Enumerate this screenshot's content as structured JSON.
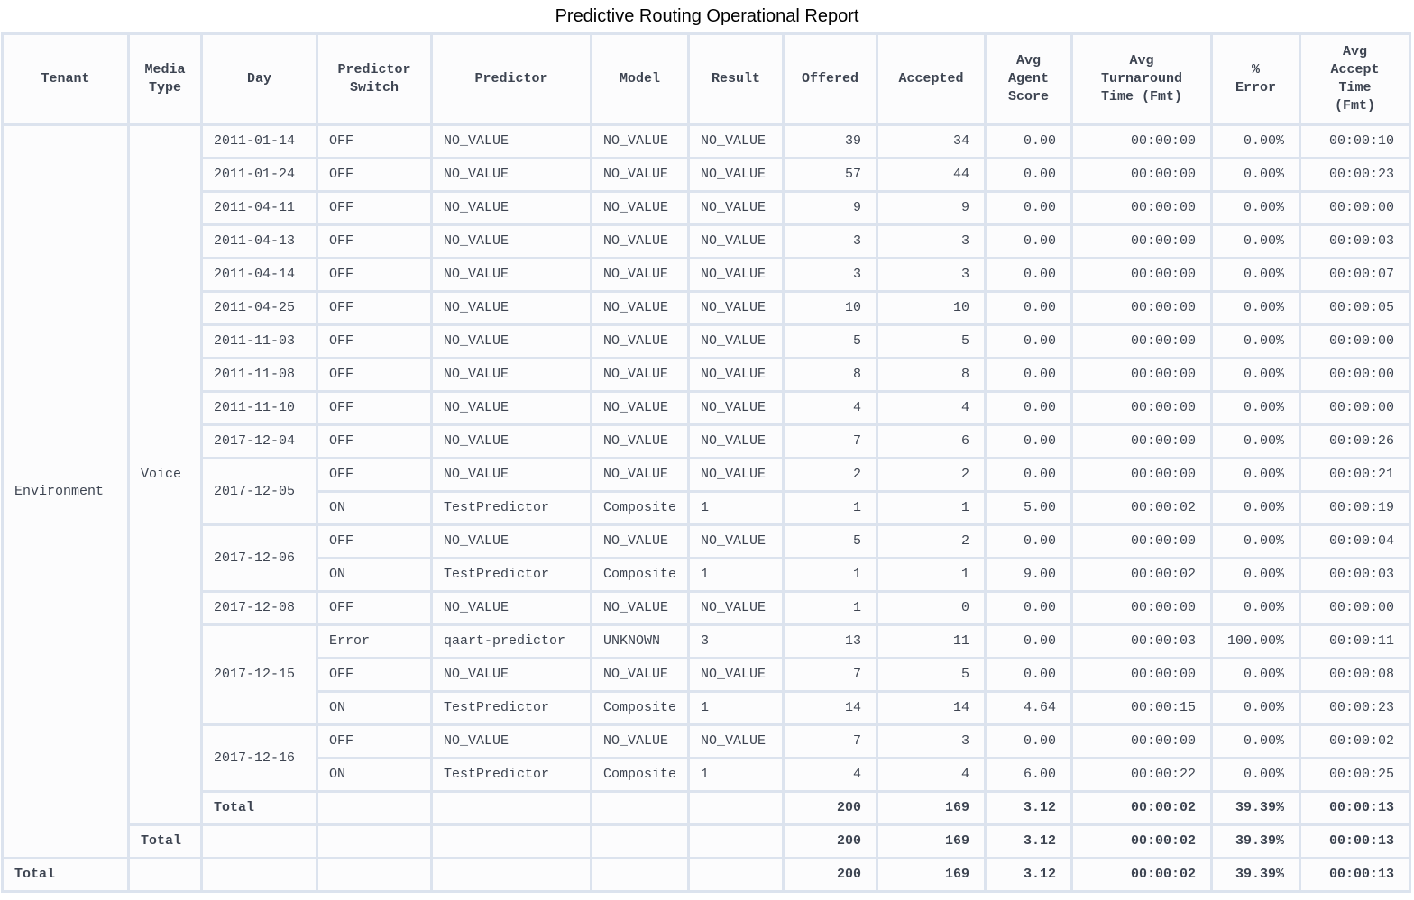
{
  "title": "Predictive Routing Operational Report",
  "table": {
    "columns": [
      {
        "id": "tenant",
        "label": "Tenant"
      },
      {
        "id": "media_type",
        "label": "Media\nType"
      },
      {
        "id": "day",
        "label": "Day"
      },
      {
        "id": "predictor_switch",
        "label": "Predictor\nSwitch"
      },
      {
        "id": "predictor",
        "label": "Predictor"
      },
      {
        "id": "model",
        "label": "Model"
      },
      {
        "id": "result",
        "label": "Result"
      },
      {
        "id": "offered",
        "label": "Offered"
      },
      {
        "id": "accepted",
        "label": "Accepted"
      },
      {
        "id": "avg_agent_score",
        "label": "Avg\nAgent\nScore"
      },
      {
        "id": "avg_turnaround_time",
        "label": "Avg\nTurnaround\nTime (Fmt)"
      },
      {
        "id": "pct_error",
        "label": "%\nError"
      },
      {
        "id": "avg_accept_time",
        "label": "Avg\nAccept\nTime\n(Fmt)"
      }
    ],
    "tenant": {
      "name": "Environment",
      "rowspan": 22
    },
    "media_type": {
      "name": "Voice",
      "rowspan": 21
    },
    "total_label": "Total",
    "rows": [
      {
        "day": "2011-01-14",
        "day_rowspan": 1,
        "predictor_switch": "OFF",
        "predictor": "NO_VALUE",
        "model": "NO_VALUE",
        "result": "NO_VALUE",
        "offered": "39",
        "accepted": "34",
        "avg_agent_score": "0.00",
        "avg_turnaround_time": "00:00:00",
        "pct_error": "0.00%",
        "avg_accept_time": "00:00:10"
      },
      {
        "day": "2011-01-24",
        "day_rowspan": 1,
        "predictor_switch": "OFF",
        "predictor": "NO_VALUE",
        "model": "NO_VALUE",
        "result": "NO_VALUE",
        "offered": "57",
        "accepted": "44",
        "avg_agent_score": "0.00",
        "avg_turnaround_time": "00:00:00",
        "pct_error": "0.00%",
        "avg_accept_time": "00:00:23"
      },
      {
        "day": "2011-04-11",
        "day_rowspan": 1,
        "predictor_switch": "OFF",
        "predictor": "NO_VALUE",
        "model": "NO_VALUE",
        "result": "NO_VALUE",
        "offered": "9",
        "accepted": "9",
        "avg_agent_score": "0.00",
        "avg_turnaround_time": "00:00:00",
        "pct_error": "0.00%",
        "avg_accept_time": "00:00:00"
      },
      {
        "day": "2011-04-13",
        "day_rowspan": 1,
        "predictor_switch": "OFF",
        "predictor": "NO_VALUE",
        "model": "NO_VALUE",
        "result": "NO_VALUE",
        "offered": "3",
        "accepted": "3",
        "avg_agent_score": "0.00",
        "avg_turnaround_time": "00:00:00",
        "pct_error": "0.00%",
        "avg_accept_time": "00:00:03"
      },
      {
        "day": "2011-04-14",
        "day_rowspan": 1,
        "predictor_switch": "OFF",
        "predictor": "NO_VALUE",
        "model": "NO_VALUE",
        "result": "NO_VALUE",
        "offered": "3",
        "accepted": "3",
        "avg_agent_score": "0.00",
        "avg_turnaround_time": "00:00:00",
        "pct_error": "0.00%",
        "avg_accept_time": "00:00:07"
      },
      {
        "day": "2011-04-25",
        "day_rowspan": 1,
        "predictor_switch": "OFF",
        "predictor": "NO_VALUE",
        "model": "NO_VALUE",
        "result": "NO_VALUE",
        "offered": "10",
        "accepted": "10",
        "avg_agent_score": "0.00",
        "avg_turnaround_time": "00:00:00",
        "pct_error": "0.00%",
        "avg_accept_time": "00:00:05"
      },
      {
        "day": "2011-11-03",
        "day_rowspan": 1,
        "predictor_switch": "OFF",
        "predictor": "NO_VALUE",
        "model": "NO_VALUE",
        "result": "NO_VALUE",
        "offered": "5",
        "accepted": "5",
        "avg_agent_score": "0.00",
        "avg_turnaround_time": "00:00:00",
        "pct_error": "0.00%",
        "avg_accept_time": "00:00:00"
      },
      {
        "day": "2011-11-08",
        "day_rowspan": 1,
        "predictor_switch": "OFF",
        "predictor": "NO_VALUE",
        "model": "NO_VALUE",
        "result": "NO_VALUE",
        "offered": "8",
        "accepted": "8",
        "avg_agent_score": "0.00",
        "avg_turnaround_time": "00:00:00",
        "pct_error": "0.00%",
        "avg_accept_time": "00:00:00"
      },
      {
        "day": "2011-11-10",
        "day_rowspan": 1,
        "predictor_switch": "OFF",
        "predictor": "NO_VALUE",
        "model": "NO_VALUE",
        "result": "NO_VALUE",
        "offered": "4",
        "accepted": "4",
        "avg_agent_score": "0.00",
        "avg_turnaround_time": "00:00:00",
        "pct_error": "0.00%",
        "avg_accept_time": "00:00:00"
      },
      {
        "day": "2017-12-04",
        "day_rowspan": 1,
        "predictor_switch": "OFF",
        "predictor": "NO_VALUE",
        "model": "NO_VALUE",
        "result": "NO_VALUE",
        "offered": "7",
        "accepted": "6",
        "avg_agent_score": "0.00",
        "avg_turnaround_time": "00:00:00",
        "pct_error": "0.00%",
        "avg_accept_time": "00:00:26"
      },
      {
        "day": "2017-12-05",
        "day_rowspan": 2,
        "predictor_switch": "OFF",
        "predictor": "NO_VALUE",
        "model": "NO_VALUE",
        "result": "NO_VALUE",
        "offered": "2",
        "accepted": "2",
        "avg_agent_score": "0.00",
        "avg_turnaround_time": "00:00:00",
        "pct_error": "0.00%",
        "avg_accept_time": "00:00:21"
      },
      {
        "day": null,
        "day_rowspan": 0,
        "predictor_switch": "ON",
        "predictor": "TestPredictor",
        "model": "Composite",
        "result": "1",
        "offered": "1",
        "accepted": "1",
        "avg_agent_score": "5.00",
        "avg_turnaround_time": "00:00:02",
        "pct_error": "0.00%",
        "avg_accept_time": "00:00:19"
      },
      {
        "day": "2017-12-06",
        "day_rowspan": 2,
        "predictor_switch": "OFF",
        "predictor": "NO_VALUE",
        "model": "NO_VALUE",
        "result": "NO_VALUE",
        "offered": "5",
        "accepted": "2",
        "avg_agent_score": "0.00",
        "avg_turnaround_time": "00:00:00",
        "pct_error": "0.00%",
        "avg_accept_time": "00:00:04"
      },
      {
        "day": null,
        "day_rowspan": 0,
        "predictor_switch": "ON",
        "predictor": "TestPredictor",
        "model": "Composite",
        "result": "1",
        "offered": "1",
        "accepted": "1",
        "avg_agent_score": "9.00",
        "avg_turnaround_time": "00:00:02",
        "pct_error": "0.00%",
        "avg_accept_time": "00:00:03"
      },
      {
        "day": "2017-12-08",
        "day_rowspan": 1,
        "predictor_switch": "OFF",
        "predictor": "NO_VALUE",
        "model": "NO_VALUE",
        "result": "NO_VALUE",
        "offered": "1",
        "accepted": "0",
        "avg_agent_score": "0.00",
        "avg_turnaround_time": "00:00:00",
        "pct_error": "0.00%",
        "avg_accept_time": "00:00:00"
      },
      {
        "day": "2017-12-15",
        "day_rowspan": 3,
        "predictor_switch": "Error",
        "predictor": "qaart-predictor",
        "model": "UNKNOWN",
        "result": "3",
        "offered": "13",
        "accepted": "11",
        "avg_agent_score": "0.00",
        "avg_turnaround_time": "00:00:03",
        "pct_error": "100.00%",
        "avg_accept_time": "00:00:11"
      },
      {
        "day": null,
        "day_rowspan": 0,
        "predictor_switch": "OFF",
        "predictor": "NO_VALUE",
        "model": "NO_VALUE",
        "result": "NO_VALUE",
        "offered": "7",
        "accepted": "5",
        "avg_agent_score": "0.00",
        "avg_turnaround_time": "00:00:00",
        "pct_error": "0.00%",
        "avg_accept_time": "00:00:08"
      },
      {
        "day": null,
        "day_rowspan": 0,
        "predictor_switch": "ON",
        "predictor": "TestPredictor",
        "model": "Composite",
        "result": "1",
        "offered": "14",
        "accepted": "14",
        "avg_agent_score": "4.64",
        "avg_turnaround_time": "00:00:15",
        "pct_error": "0.00%",
        "avg_accept_time": "00:00:23"
      },
      {
        "day": "2017-12-16",
        "day_rowspan": 2,
        "predictor_switch": "OFF",
        "predictor": "NO_VALUE",
        "model": "NO_VALUE",
        "result": "NO_VALUE",
        "offered": "7",
        "accepted": "3",
        "avg_agent_score": "0.00",
        "avg_turnaround_time": "00:00:00",
        "pct_error": "0.00%",
        "avg_accept_time": "00:00:02"
      },
      {
        "day": null,
        "day_rowspan": 0,
        "predictor_switch": "ON",
        "predictor": "TestPredictor",
        "model": "Composite",
        "result": "1",
        "offered": "4",
        "accepted": "4",
        "avg_agent_score": "6.00",
        "avg_turnaround_time": "00:00:22",
        "pct_error": "0.00%",
        "avg_accept_time": "00:00:25"
      },
      {
        "total_level": "day",
        "total_label": "Total",
        "offered": "200",
        "accepted": "169",
        "avg_agent_score": "3.12",
        "avg_turnaround_time": "00:00:02",
        "pct_error": "39.39%",
        "avg_accept_time": "00:00:13"
      },
      {
        "total_level": "media_type",
        "total_label": "Total",
        "offered": "200",
        "accepted": "169",
        "avg_agent_score": "3.12",
        "avg_turnaround_time": "00:00:02",
        "pct_error": "39.39%",
        "avg_accept_time": "00:00:13"
      },
      {
        "total_level": "tenant",
        "total_label": "Total",
        "offered": "200",
        "accepted": "169",
        "avg_agent_score": "3.12",
        "avg_turnaround_time": "00:00:02",
        "pct_error": "39.39%",
        "avg_accept_time": "00:00:13"
      }
    ]
  }
}
